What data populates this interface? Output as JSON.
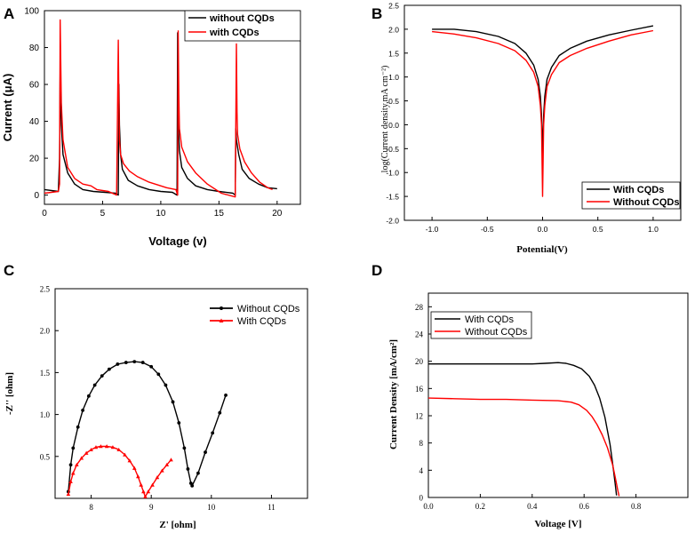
{
  "chart_data": [
    {
      "panel": "A",
      "type": "line",
      "xlabel": "Voltage (v)",
      "ylabel": "Current (μA)",
      "xlim": [
        0,
        22
      ],
      "ylim": [
        -5,
        100
      ],
      "xticks": [
        "0",
        "5",
        "10",
        "15",
        "20"
      ],
      "yticks": [
        "0",
        "20",
        "40",
        "60",
        "80",
        "100"
      ],
      "legend": "top-right",
      "series": [
        {
          "name": "without CQDs",
          "color": "#000000",
          "x": [
            0,
            1.2,
            1.3,
            1.35,
            1.45,
            1.6,
            2.0,
            2.6,
            3.3,
            4.2,
            5.2,
            6.1,
            6.35,
            6.4,
            6.45,
            6.55,
            6.7,
            7.2,
            8.0,
            9.0,
            10.0,
            11.0,
            11.4,
            11.45,
            11.5,
            11.6,
            11.8,
            12.3,
            13.0,
            14.0,
            15.0,
            16.2,
            16.4,
            16.45,
            16.5,
            16.7,
            17.0,
            17.6,
            18.4,
            19.2,
            20.0
          ],
          "y": [
            3,
            2,
            20,
            66,
            38,
            22,
            12,
            6,
            3,
            2,
            1.5,
            1,
            0,
            60,
            38,
            22,
            14,
            8,
            5,
            3,
            2,
            1.5,
            0,
            88,
            40,
            24,
            15,
            9,
            5,
            3,
            2,
            1,
            0,
            36,
            30,
            22,
            14,
            9,
            6,
            4,
            3.5
          ]
        },
        {
          "name": "with CQDs",
          "color": "#ff0000",
          "x": [
            0,
            1.2,
            1.3,
            1.35,
            1.45,
            1.6,
            2.0,
            2.6,
            3.3,
            4.0,
            4.5,
            5.5,
            6.2,
            6.35,
            6.4,
            6.45,
            6.55,
            6.8,
            7.3,
            8.0,
            9.0,
            10.5,
            11.3,
            11.45,
            11.5,
            11.55,
            11.6,
            11.8,
            12.3,
            13.0,
            14.0,
            15.2,
            16.4,
            16.5,
            16.55,
            16.6,
            16.8,
            17.2,
            17.8,
            18.5,
            19.2,
            19.6
          ],
          "y": [
            1,
            2,
            6,
            95,
            50,
            30,
            15,
            9,
            6,
            5,
            3,
            2,
            0,
            84,
            50,
            30,
            22,
            17,
            13,
            10,
            7,
            4,
            3,
            0,
            89,
            55,
            36,
            26,
            18,
            12,
            6,
            1,
            -1,
            82,
            45,
            33,
            25,
            18,
            12,
            7,
            4,
            3
          ]
        }
      ]
    },
    {
      "panel": "B",
      "type": "line",
      "xlabel": "Potential(V)",
      "ylabel": "log(Current density,mA cm⁻²)",
      "xlim": [
        -1.25,
        1.25
      ],
      "ylim": [
        -2.0,
        2.5
      ],
      "xticks": [
        "-1.0",
        "-0.5",
        "0.0",
        "0.5",
        "1.0"
      ],
      "yticks": [
        "-2.0",
        "-1.5",
        "-1.0",
        "-0.5",
        "0.0",
        "0.5",
        "1.0",
        "1.5",
        "2.0",
        "2.5"
      ],
      "legend": "bottom-right",
      "series": [
        {
          "name": "With CQDs",
          "color": "#000000",
          "x": [
            -1.0,
            -0.8,
            -0.6,
            -0.4,
            -0.25,
            -0.15,
            -0.08,
            -0.04,
            -0.02,
            -0.01,
            0,
            0.01,
            0.02,
            0.04,
            0.08,
            0.15,
            0.25,
            0.4,
            0.6,
            0.8,
            1.0
          ],
          "y": [
            2.0,
            2.0,
            1.95,
            1.85,
            1.7,
            1.5,
            1.25,
            0.95,
            0.6,
            0.2,
            -0.6,
            0.2,
            0.6,
            0.95,
            1.2,
            1.45,
            1.6,
            1.75,
            1.88,
            1.98,
            2.07
          ]
        },
        {
          "name": "Without CQDs",
          "color": "#ff0000",
          "x": [
            -1.0,
            -0.8,
            -0.6,
            -0.4,
            -0.25,
            -0.15,
            -0.08,
            -0.04,
            -0.02,
            -0.01,
            0,
            0.01,
            0.02,
            0.04,
            0.08,
            0.15,
            0.25,
            0.4,
            0.6,
            0.8,
            1.0
          ],
          "y": [
            1.95,
            1.9,
            1.82,
            1.7,
            1.55,
            1.35,
            1.1,
            0.8,
            0.4,
            0.0,
            -1.5,
            0.0,
            0.4,
            0.8,
            1.05,
            1.3,
            1.45,
            1.6,
            1.75,
            1.88,
            1.97
          ]
        }
      ]
    },
    {
      "panel": "C",
      "type": "line",
      "xlabel": "Z' [ohm]",
      "ylabel": "-Z'' [ohm]",
      "xlim": [
        7.4,
        11.6
      ],
      "ylim": [
        0,
        2.5
      ],
      "xticks": [
        "8",
        "9",
        "10",
        "11"
      ],
      "yticks": [
        "0.5",
        "1.0",
        "1.5",
        "2.0",
        "2.5"
      ],
      "legend": "top-right",
      "series": [
        {
          "name": "Without CQDs",
          "color": "#000000",
          "x": [
            7.62,
            7.66,
            7.7,
            7.78,
            7.86,
            7.96,
            8.06,
            8.18,
            8.3,
            8.44,
            8.58,
            8.72,
            8.86,
            9.0,
            9.12,
            9.24,
            9.36,
            9.46,
            9.55,
            9.61,
            9.66,
            9.68,
            9.78,
            9.9,
            10.02,
            10.14,
            10.24
          ],
          "y": [
            0.08,
            0.4,
            0.6,
            0.85,
            1.05,
            1.22,
            1.35,
            1.46,
            1.54,
            1.6,
            1.62,
            1.63,
            1.62,
            1.57,
            1.48,
            1.35,
            1.15,
            0.9,
            0.6,
            0.35,
            0.18,
            0.15,
            0.3,
            0.55,
            0.78,
            1.02,
            1.23
          ]
        },
        {
          "name": "With CQDs",
          "color": "#ff0000",
          "x": [
            7.62,
            7.66,
            7.7,
            7.76,
            7.84,
            7.92,
            8.0,
            8.08,
            8.16,
            8.26,
            8.36,
            8.46,
            8.56,
            8.64,
            8.72,
            8.78,
            8.83,
            8.87,
            8.9,
            8.95,
            9.02,
            9.1,
            9.18,
            9.26,
            9.33
          ],
          "y": [
            0.05,
            0.2,
            0.3,
            0.4,
            0.48,
            0.54,
            0.58,
            0.61,
            0.62,
            0.62,
            0.61,
            0.58,
            0.52,
            0.45,
            0.36,
            0.26,
            0.16,
            0.08,
            0.02,
            0.08,
            0.16,
            0.25,
            0.33,
            0.4,
            0.46
          ]
        }
      ]
    },
    {
      "panel": "D",
      "type": "line",
      "xlabel": "Voltage [V]",
      "ylabel": "Current Density [mA/cm²]",
      "xlim": [
        0,
        1.0
      ],
      "ylim": [
        0,
        30
      ],
      "xticks": [
        "0.0",
        "0.2",
        "0.4",
        "0.6",
        "0.8"
      ],
      "yticks": [
        "0",
        "4",
        "8",
        "12",
        "16",
        "20",
        "24",
        "28"
      ],
      "legend": "top-left",
      "series": [
        {
          "name": "With CQDs",
          "color": "#000000",
          "x": [
            0,
            0.1,
            0.2,
            0.3,
            0.4,
            0.45,
            0.5,
            0.53,
            0.56,
            0.59,
            0.62,
            0.64,
            0.66,
            0.68,
            0.7,
            0.71,
            0.72,
            0.725
          ],
          "y": [
            19.6,
            19.6,
            19.6,
            19.6,
            19.6,
            19.7,
            19.8,
            19.7,
            19.4,
            18.9,
            17.8,
            16.5,
            14.6,
            11.8,
            7.8,
            5.0,
            2.0,
            0.3
          ]
        },
        {
          "name": "Without CQDs",
          "color": "#ff0000",
          "x": [
            0,
            0.1,
            0.2,
            0.3,
            0.4,
            0.5,
            0.55,
            0.58,
            0.61,
            0.63,
            0.65,
            0.67,
            0.69,
            0.71,
            0.72,
            0.73,
            0.735
          ],
          "y": [
            14.6,
            14.5,
            14.4,
            14.4,
            14.3,
            14.2,
            14.0,
            13.6,
            12.8,
            11.9,
            10.7,
            9.2,
            7.3,
            4.8,
            3.0,
            1.0,
            0.2
          ]
        }
      ]
    }
  ]
}
